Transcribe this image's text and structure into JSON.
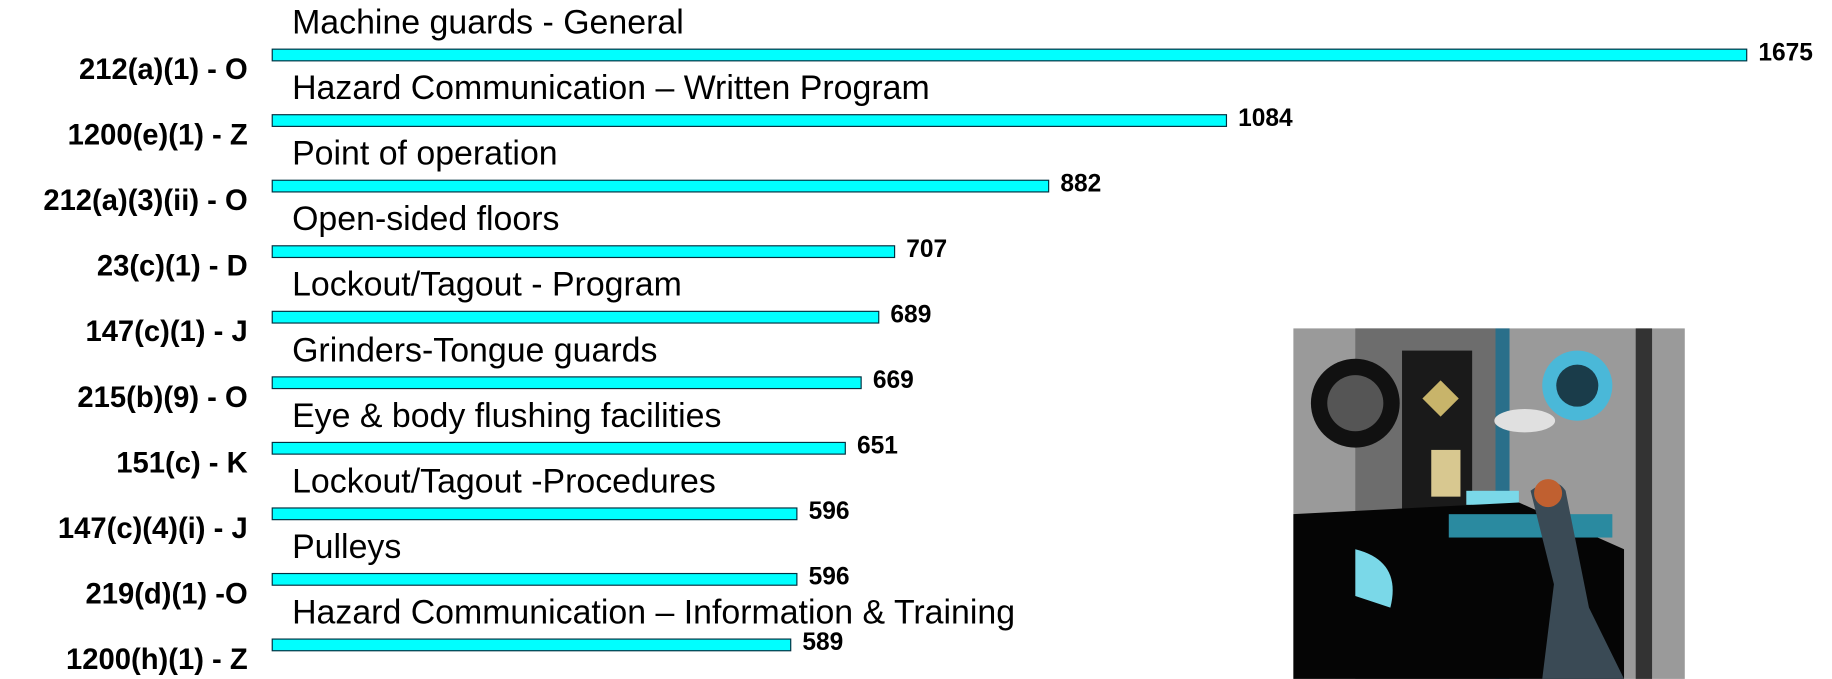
{
  "chart_data": {
    "type": "bar",
    "orientation": "horizontal",
    "categories": [
      "212(a)(1) - O",
      "1200(e)(1) - Z",
      "212(a)(3)(ii) - O",
      "23(c)(1) - D",
      "147(c)(1) - J",
      "215(b)(9) - O",
      "151(c) - K",
      "147(c)(4)(i) - J",
      "219(d)(1) -O",
      "1200(h)(1) - Z"
    ],
    "descriptions": [
      "Machine guards - General",
      "Hazard Communication – Written Program",
      "Point of operation",
      "Open-sided floors",
      "Lockout/Tagout - Program",
      "Grinders-Tongue guards",
      "Eye & body flushing facilities",
      "Lockout/Tagout -Procedures",
      "Pulleys",
      "Hazard Communication – Information & Training"
    ],
    "values": [
      1675,
      1084,
      882,
      707,
      689,
      669,
      651,
      596,
      596,
      589
    ],
    "color": "#00ffff"
  }
}
